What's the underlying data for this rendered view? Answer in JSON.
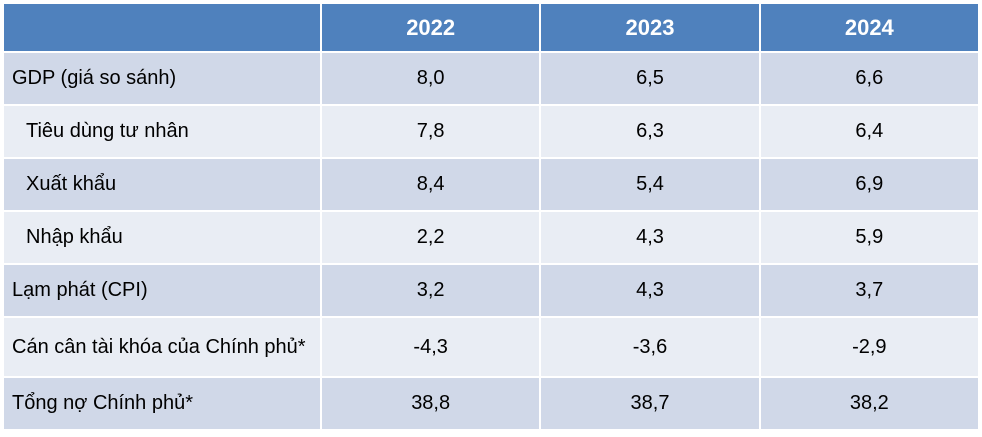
{
  "table": {
    "headers": [
      "",
      "2022",
      "2023",
      "2024"
    ],
    "rows": [
      {
        "label": "GDP (giá so sánh)",
        "values": [
          "8,0",
          "6,5",
          "6,6"
        ]
      },
      {
        "label": "Tiêu dùng tư nhân",
        "values": [
          "7,8",
          "6,3",
          "6,4"
        ]
      },
      {
        "label": "Xuất khẩu",
        "values": [
          "8,4",
          "5,4",
          "6,9"
        ]
      },
      {
        "label": "Nhập khẩu",
        "values": [
          "2,2",
          "4,3",
          "5,9"
        ]
      },
      {
        "label": "Lạm phát (CPI)",
        "values": [
          "3,2",
          "4,3",
          "3,7"
        ]
      },
      {
        "label": "Cán cân tài khóa của Chính phủ*",
        "values": [
          "-4,3",
          "-3,6",
          "-2,9"
        ]
      },
      {
        "label": "Tổng nợ Chính phủ*",
        "values": [
          "38,8",
          "38,7",
          "38,2"
        ]
      }
    ]
  }
}
